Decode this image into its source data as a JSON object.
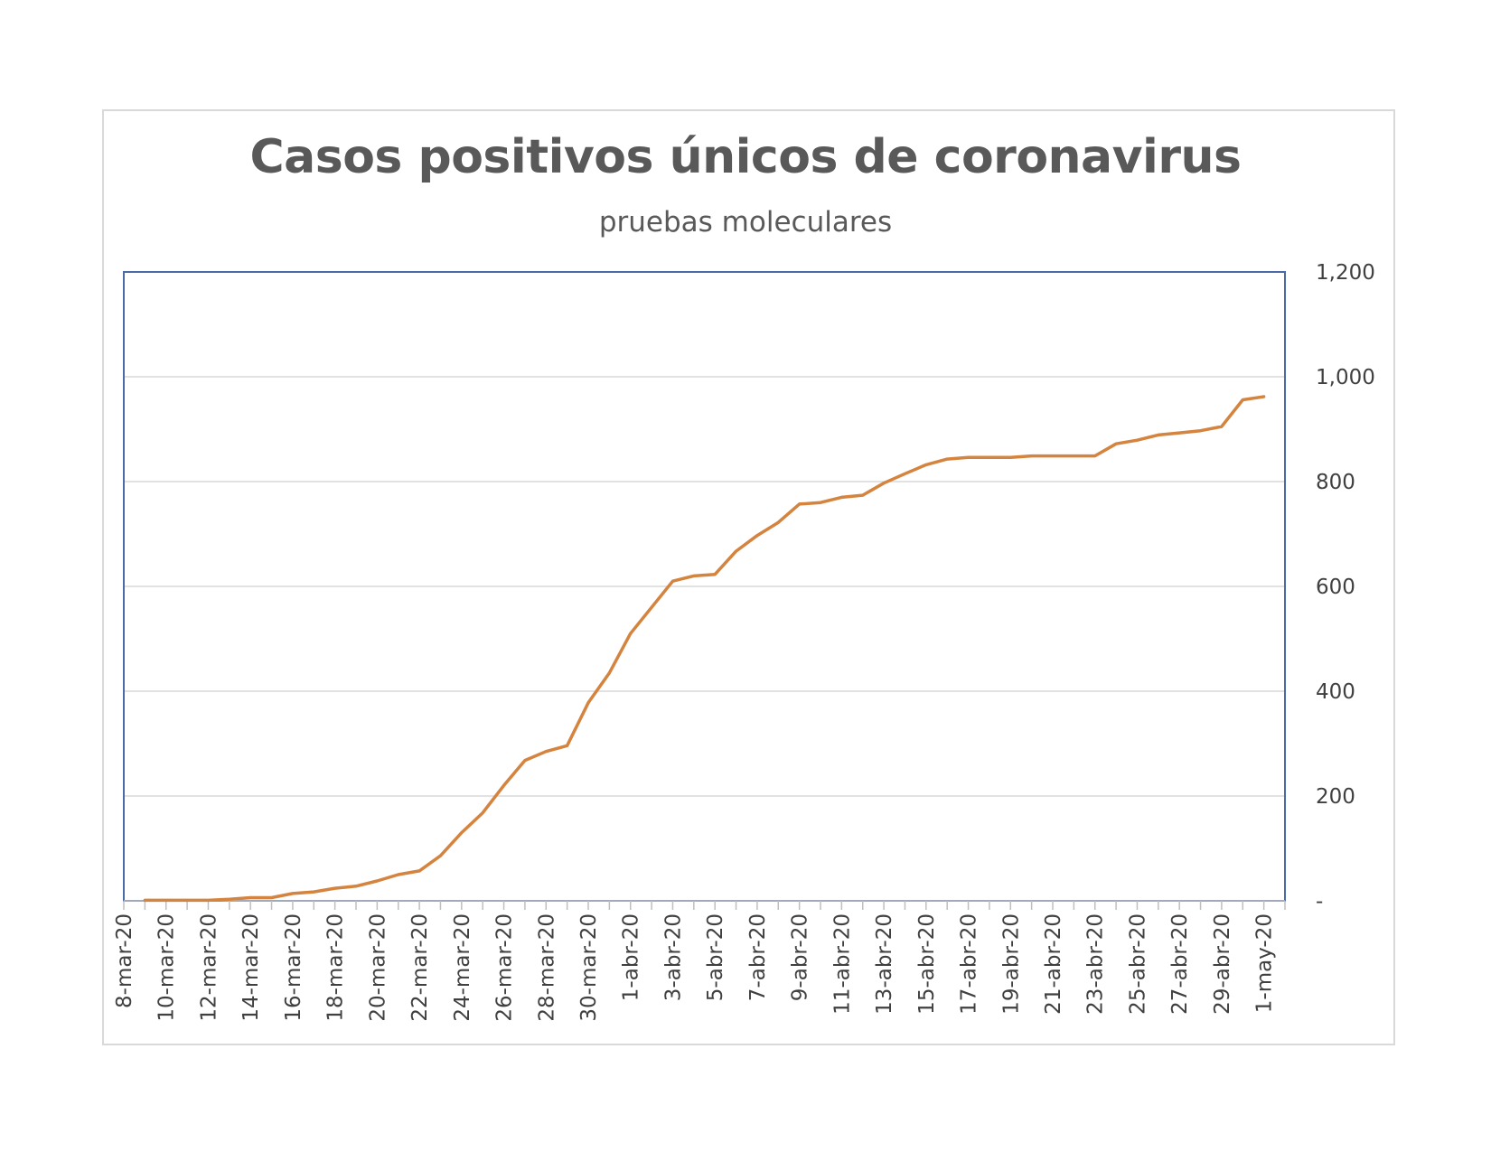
{
  "chart_data": {
    "type": "line",
    "title": "Casos positivos únicos de coronavirus",
    "subtitle": "pruebas moleculares",
    "xlabel": "",
    "ylabel": "",
    "y_axis_position": "right",
    "ylim": [
      0,
      1200
    ],
    "yticks": [
      0,
      200,
      400,
      600,
      800,
      1000,
      1200
    ],
    "ytick_labels": [
      "-",
      "200",
      "400",
      "600",
      "800",
      "1,000",
      "1,200"
    ],
    "xlim": [
      "2020-03-08",
      "2020-05-02"
    ],
    "xtick_labels": [
      "8-mar-20",
      "10-mar-20",
      "12-mar-20",
      "14-mar-20",
      "16-mar-20",
      "18-mar-20",
      "20-mar-20",
      "22-mar-20",
      "24-mar-20",
      "26-mar-20",
      "28-mar-20",
      "30-mar-20",
      "1-abr-20",
      "3-abr-20",
      "5-abr-20",
      "7-abr-20",
      "9-abr-20",
      "11-abr-20",
      "13-abr-20",
      "15-abr-20",
      "17-abr-20",
      "19-abr-20",
      "21-abr-20",
      "23-abr-20",
      "25-abr-20",
      "27-abr-20",
      "29-abr-20",
      "1-may-20"
    ],
    "grid": true,
    "legend": "none",
    "line_color": "#d4843e",
    "series": [
      {
        "x": [
          "2020-03-09",
          "2020-03-10",
          "2020-03-11",
          "2020-03-12",
          "2020-03-13",
          "2020-03-14",
          "2020-03-15",
          "2020-03-16",
          "2020-03-17",
          "2020-03-18",
          "2020-03-19",
          "2020-03-20",
          "2020-03-21",
          "2020-03-22",
          "2020-03-23",
          "2020-03-24",
          "2020-03-25",
          "2020-03-26",
          "2020-03-27",
          "2020-03-28",
          "2020-03-29",
          "2020-03-30",
          "2020-03-31",
          "2020-04-01",
          "2020-04-02",
          "2020-04-03",
          "2020-04-04",
          "2020-04-05",
          "2020-04-06",
          "2020-04-07",
          "2020-04-08",
          "2020-04-09",
          "2020-04-10",
          "2020-04-11",
          "2020-04-12",
          "2020-04-13",
          "2020-04-14",
          "2020-04-15",
          "2020-04-16",
          "2020-04-17",
          "2020-04-18",
          "2020-04-19",
          "2020-04-20",
          "2020-04-21",
          "2020-04-22",
          "2020-04-23",
          "2020-04-24",
          "2020-04-25",
          "2020-04-26",
          "2020-04-27",
          "2020-04-28",
          "2020-04-29",
          "2020-04-30",
          "2020-05-01"
        ],
        "values": [
          1,
          1,
          1,
          1,
          3,
          6,
          6,
          14,
          17,
          24,
          28,
          38,
          50,
          57,
          86,
          130,
          168,
          220,
          268,
          285,
          296,
          378,
          435,
          510,
          560,
          610,
          620,
          623,
          667,
          697,
          722,
          757,
          760,
          770,
          774,
          797,
          815,
          832,
          843,
          846,
          846,
          846,
          849,
          849,
          849,
          849,
          872,
          879,
          889,
          893,
          897,
          905,
          956,
          962
        ]
      }
    ]
  }
}
